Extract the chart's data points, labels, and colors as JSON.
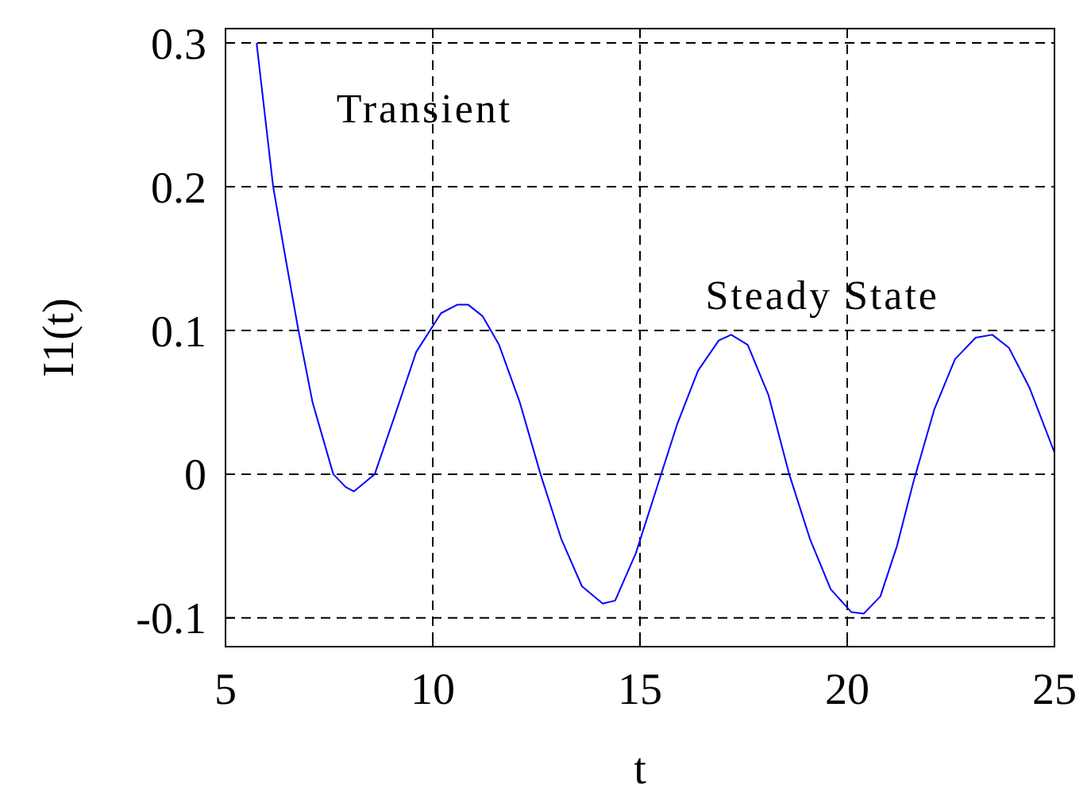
{
  "chart_data": {
    "type": "line",
    "xlabel": "t",
    "ylabel": "I1(t)",
    "xlim": [
      5,
      25
    ],
    "ylim": [
      -0.12,
      0.31
    ],
    "xticks": [
      5,
      10,
      15,
      20,
      25
    ],
    "yticks": [
      -0.1,
      0,
      0.1,
      0.2,
      0.3
    ],
    "grid": true,
    "line_style": "solid",
    "marker": "none",
    "annotations": [
      "Transient",
      "Steady State"
    ],
    "series": [
      {
        "color": "#0000ff",
        "x": [
          5.75,
          6.15,
          6.45,
          6.76,
          7.1,
          7.6,
          7.9,
          8.1,
          8.35,
          8.6,
          9.1,
          9.6,
          10.2,
          10.6,
          10.85,
          11.2,
          11.6,
          12.1,
          12.6,
          13.1,
          13.6,
          14.1,
          14.4,
          14.9,
          15.4,
          15.9,
          16.4,
          16.9,
          17.2,
          17.6,
          18.1,
          18.6,
          19.1,
          19.6,
          20.1,
          20.4,
          20.8,
          21.2,
          21.6,
          22.1,
          22.6,
          23.1,
          23.5,
          23.9,
          24.4,
          25
        ],
        "values": [
          0.3,
          0.2,
          0.15,
          0.1,
          0.05,
          0.0,
          -0.009,
          -0.012,
          -0.006,
          0.0,
          0.042,
          0.085,
          0.112,
          0.118,
          0.118,
          0.11,
          0.09,
          0.05,
          0.0,
          -0.045,
          -0.078,
          -0.09,
          -0.088,
          -0.055,
          -0.01,
          0.035,
          0.072,
          0.093,
          0.097,
          0.09,
          0.055,
          0.0,
          -0.045,
          -0.08,
          -0.096,
          -0.097,
          -0.085,
          -0.05,
          -0.005,
          0.045,
          0.08,
          0.095,
          0.097,
          0.088,
          0.06,
          0.015
        ]
      }
    ]
  }
}
